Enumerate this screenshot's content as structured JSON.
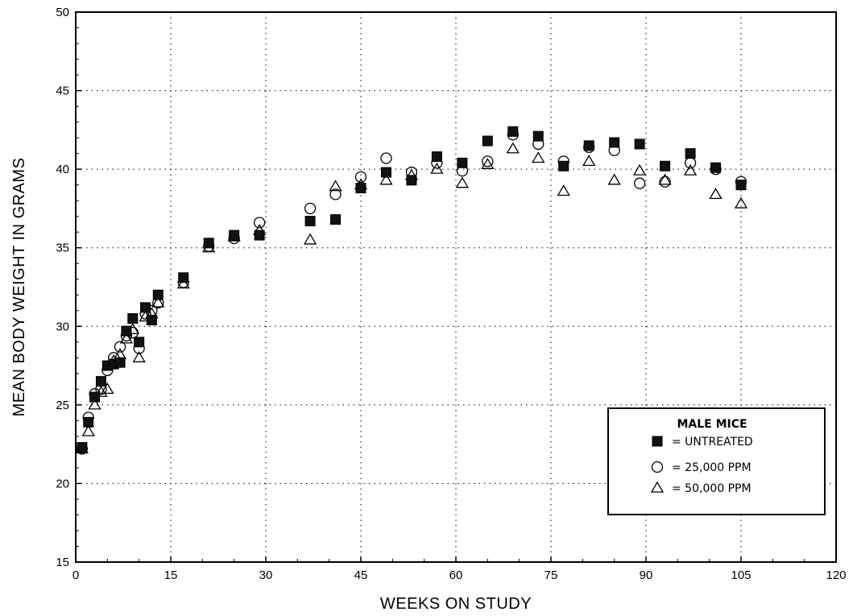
{
  "chart_data": {
    "type": "scatter",
    "title": "",
    "xlabel": "WEEKS ON STUDY",
    "ylabel": "MEAN BODY WEIGHT IN GRAMS",
    "xlim": [
      0,
      120
    ],
    "ylim": [
      15,
      50
    ],
    "xticks": [
      "0",
      "15",
      "30",
      "45",
      "60",
      "75",
      "90",
      "105",
      "120"
    ],
    "yticks": [
      "15",
      "20",
      "25",
      "30",
      "35",
      "40",
      "45",
      "50"
    ],
    "grid": "dotted",
    "legend": {
      "title": "MALE MICE",
      "placement": "lower-right",
      "entries": [
        "= UNTREATED",
        "= 25,000 PPM",
        "= 50,000 PPM"
      ]
    },
    "series": [
      {
        "name": "UNTREATED",
        "marker": "filled-square",
        "x": [
          1,
          2,
          3,
          4,
          5,
          6,
          7,
          8,
          9,
          10,
          11,
          12,
          13,
          17,
          21,
          25,
          29,
          37,
          41,
          45,
          49,
          53,
          57,
          61,
          65,
          69,
          73,
          77,
          81,
          85,
          89,
          93,
          97,
          101,
          105
        ],
        "y": [
          22.3,
          23.9,
          25.5,
          26.5,
          27.5,
          27.6,
          27.7,
          29.7,
          30.5,
          29.0,
          31.2,
          30.4,
          32.0,
          33.1,
          35.3,
          35.8,
          35.8,
          36.7,
          36.8,
          38.8,
          39.8,
          39.3,
          40.8,
          40.4,
          41.8,
          42.4,
          42.1,
          40.2,
          41.5,
          41.7,
          41.6,
          40.2,
          41.0,
          40.1,
          39.0
        ]
      },
      {
        "name": "25,000 PPM",
        "marker": "open-circle",
        "x": [
          1,
          2,
          3,
          4,
          5,
          6,
          7,
          8,
          9,
          10,
          11,
          12,
          13,
          17,
          21,
          25,
          29,
          37,
          41,
          45,
          49,
          53,
          57,
          61,
          65,
          69,
          73,
          77,
          81,
          85,
          89,
          93,
          97,
          101,
          105
        ],
        "y": [
          22.2,
          24.2,
          25.7,
          26.0,
          27.2,
          28.0,
          28.7,
          29.4,
          29.6,
          28.6,
          30.8,
          31.0,
          31.5,
          32.8,
          35.1,
          35.6,
          36.6,
          37.5,
          38.4,
          39.5,
          40.7,
          39.8,
          40.4,
          39.9,
          40.5,
          42.2,
          41.6,
          40.5,
          41.4,
          41.2,
          39.1,
          39.2,
          40.4,
          40.0,
          39.2
        ]
      },
      {
        "name": "50,000 PPM",
        "marker": "open-triangle",
        "x": [
          1,
          2,
          3,
          4,
          5,
          6,
          7,
          8,
          9,
          10,
          11,
          12,
          13,
          17,
          21,
          25,
          29,
          37,
          41,
          45,
          49,
          53,
          57,
          61,
          65,
          69,
          73,
          77,
          81,
          85,
          89,
          93,
          97,
          101,
          105
        ],
        "y": [
          22.2,
          23.3,
          25.0,
          25.8,
          26.0,
          27.8,
          28.2,
          29.2,
          29.8,
          28.0,
          30.6,
          30.8,
          31.5,
          32.7,
          35.0,
          35.7,
          36.1,
          35.5,
          38.9,
          39.0,
          39.3,
          39.6,
          40.0,
          39.1,
          40.3,
          41.3,
          40.7,
          38.6,
          40.5,
          39.3,
          39.9,
          39.3,
          39.9,
          38.4,
          37.8
        ]
      }
    ]
  }
}
